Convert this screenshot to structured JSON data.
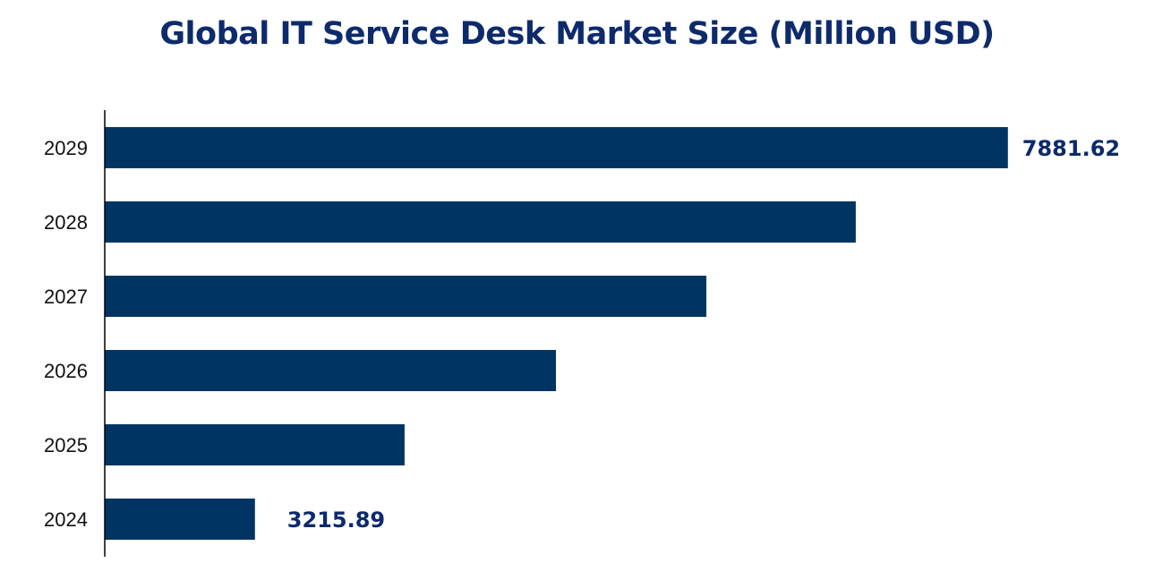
{
  "chart_data": {
    "type": "bar",
    "orientation": "horizontal",
    "title": "Global IT Service Desk Market Size (Million USD)",
    "categories": [
      "2024",
      "2025",
      "2026",
      "2027",
      "2028",
      "2029"
    ],
    "values": [
      3215.89,
      4143,
      5081,
      6013,
      6939,
      7881.62
    ],
    "data_labels": {
      "2024": "3215.89",
      "2029": "7881.62"
    },
    "xlim": [
      2285,
      8100
    ],
    "grid": false,
    "bar_color": "#003462",
    "label_color": "#0d2a6b"
  }
}
